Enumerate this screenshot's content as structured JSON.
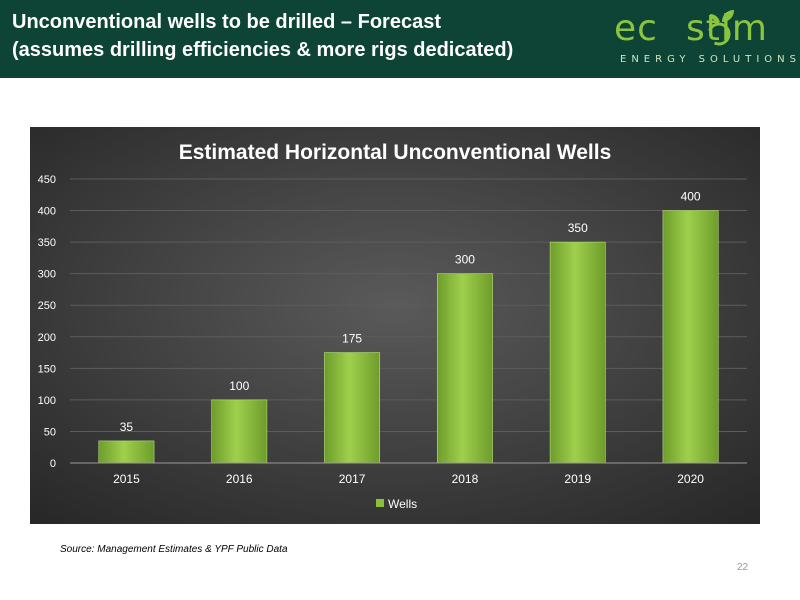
{
  "header": {
    "title_line1": "Unconventional wells to be drilled – Forecast",
    "title_line2": "(assumes drilling efficiencies & more rigs dedicated)"
  },
  "logo": {
    "text_left": "ec",
    "text_right": "stim",
    "subtitle": "ENERGY SOLUTIONS",
    "brand_color": "#8bc53f"
  },
  "chart_data": {
    "type": "bar",
    "title": "Estimated Horizontal Unconventional Wells",
    "categories": [
      "2015",
      "2016",
      "2017",
      "2018",
      "2019",
      "2020"
    ],
    "series": [
      {
        "name": "Wells",
        "values": [
          35,
          100,
          175,
          300,
          350,
          400
        ]
      }
    ],
    "ylim": [
      0,
      450
    ],
    "yticks": [
      0,
      50,
      100,
      150,
      200,
      250,
      300,
      350,
      400,
      450
    ],
    "grid": true,
    "legend": "bottom",
    "data_labels": true,
    "bar_color": "#8cbf3a",
    "background": "#3a3a3a"
  },
  "footer": {
    "source": "Source: Management Estimates & YPF Public Data",
    "page_number": "22"
  }
}
